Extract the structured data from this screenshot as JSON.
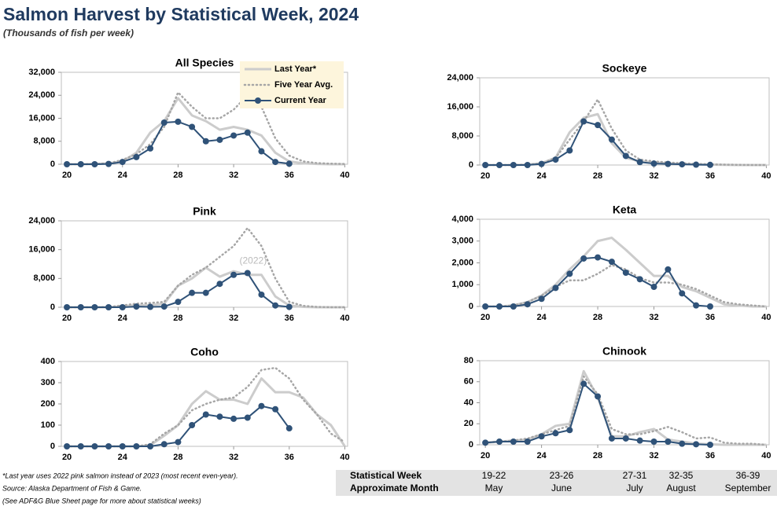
{
  "title": "Salmon Harvest by Statistical Week, 2024",
  "subtitle": "(Thousands of fish per week)",
  "chart_data": [
    {
      "type": "line",
      "title": "All Species",
      "legend": "top-right",
      "x": [
        20,
        21,
        22,
        23,
        24,
        25,
        26,
        27,
        28,
        29,
        30,
        31,
        32,
        33,
        34,
        35,
        36,
        37,
        38,
        39,
        40
      ],
      "xlim": [
        19.6,
        40.2
      ],
      "xticks": [
        20,
        24,
        28,
        32,
        36,
        40
      ],
      "ylim": [
        0,
        32000
      ],
      "yticks": [
        0,
        {
          "value": 8000,
          "label": "8,000"
        },
        {
          "value": 16000,
          "label": "16,000"
        },
        {
          "value": 24000,
          "label": "24,000"
        },
        {
          "value": 32000,
          "label": "32,000"
        }
      ],
      "series": [
        {
          "name": "Last Year*",
          "color": "#cccccc",
          "values": [
            0,
            0,
            100,
            300,
            1000,
            4000,
            11000,
            15000,
            23000,
            17000,
            15000,
            12000,
            13000,
            12000,
            10000,
            4000,
            1000,
            300,
            100,
            0,
            0
          ]
        },
        {
          "name": "Five Year Avg.",
          "color": "#a6a6a6",
          "values": [
            0,
            0,
            100,
            300,
            1500,
            3500,
            7000,
            13000,
            25000,
            20000,
            16000,
            16000,
            19000,
            24000,
            20000,
            9000,
            3000,
            1000,
            400,
            200,
            100
          ]
        },
        {
          "name": "Current Year",
          "color": "#2f5278",
          "values": [
            0,
            0,
            0,
            100,
            800,
            2500,
            5500,
            14500,
            14800,
            13000,
            8000,
            8500,
            10000,
            11000,
            4500,
            800,
            200,
            null,
            null,
            null,
            null
          ]
        }
      ]
    },
    {
      "type": "line",
      "title": "Sockeye",
      "x": [
        20,
        21,
        22,
        23,
        24,
        25,
        26,
        27,
        28,
        29,
        30,
        31,
        32,
        33,
        34,
        35,
        36,
        37,
        38,
        39,
        40
      ],
      "xlim": [
        19.6,
        40.2
      ],
      "xticks": [
        20,
        24,
        28,
        32,
        36,
        40
      ],
      "ylim": [
        0,
        24000
      ],
      "yticks": [
        0,
        {
          "value": 8000,
          "label": "8,000"
        },
        {
          "value": 16000,
          "label": "16,000"
        },
        {
          "value": 24000,
          "label": "24,000"
        }
      ],
      "series": [
        {
          "name": "Last Year*",
          "color": "#cccccc",
          "values": [
            0,
            0,
            0,
            100,
            500,
            2000,
            9000,
            13000,
            14000,
            6000,
            2000,
            1000,
            700,
            500,
            300,
            200,
            100,
            50,
            0,
            0,
            0
          ]
        },
        {
          "name": "Five Year Avg.",
          "color": "#a6a6a6",
          "values": [
            0,
            0,
            0,
            100,
            400,
            2000,
            7000,
            12000,
            18000,
            10000,
            4000,
            1500,
            1000,
            700,
            500,
            300,
            200,
            100,
            50,
            0,
            0
          ]
        },
        {
          "name": "Current Year",
          "color": "#2f5278",
          "values": [
            0,
            0,
            0,
            0,
            300,
            1500,
            4000,
            12000,
            11000,
            7000,
            2500,
            800,
            400,
            300,
            200,
            100,
            50,
            null,
            null,
            null,
            null
          ]
        }
      ]
    },
    {
      "type": "line",
      "title": "Pink",
      "x": [
        20,
        21,
        22,
        23,
        24,
        25,
        26,
        27,
        28,
        29,
        30,
        31,
        32,
        33,
        34,
        35,
        36,
        37,
        38,
        39,
        40
      ],
      "xlim": [
        19.6,
        40.2
      ],
      "xticks": [
        20,
        24,
        28,
        32,
        36,
        40
      ],
      "ylim": [
        0,
        24000
      ],
      "yticks": [
        0,
        {
          "value": 8000,
          "label": "8,000"
        },
        {
          "value": 16000,
          "label": "16,000"
        },
        {
          "value": 24000,
          "label": "24,000"
        }
      ],
      "annotations": [
        {
          "text": "(2022)",
          "x": 33.4,
          "y": 12800
        }
      ],
      "series": [
        {
          "name": "Last Year*",
          "color": "#cccccc",
          "values": [
            0,
            0,
            0,
            0,
            300,
            500,
            600,
            1000,
            6000,
            8000,
            11000,
            8500,
            10000,
            9000,
            9000,
            3000,
            500,
            100,
            0,
            0,
            0
          ]
        },
        {
          "name": "Five Year Avg.",
          "color": "#a6a6a6",
          "values": [
            0,
            0,
            0,
            100,
            500,
            1000,
            1200,
            1500,
            6000,
            9000,
            11000,
            14000,
            17000,
            22000,
            17000,
            8000,
            1500,
            400,
            100,
            0,
            0
          ]
        },
        {
          "name": "Current Year",
          "color": "#2f5278",
          "values": [
            0,
            0,
            0,
            0,
            0,
            200,
            100,
            200,
            1500,
            4000,
            4000,
            6500,
            9000,
            9500,
            3500,
            500,
            100,
            null,
            null,
            null,
            null
          ]
        }
      ]
    },
    {
      "type": "line",
      "title": "Keta",
      "x": [
        20,
        21,
        22,
        23,
        24,
        25,
        26,
        27,
        28,
        29,
        30,
        31,
        32,
        33,
        34,
        35,
        36,
        37,
        38,
        39,
        40
      ],
      "xlim": [
        19.6,
        40.2
      ],
      "xticks": [
        20,
        24,
        28,
        32,
        36,
        40
      ],
      "ylim": [
        0,
        4000
      ],
      "yticks": [
        0,
        {
          "value": 1000,
          "label": "1,000"
        },
        {
          "value": 2000,
          "label": "2,000"
        },
        {
          "value": 3000,
          "label": "3,000"
        },
        {
          "value": 4000,
          "label": "4,000"
        }
      ],
      "series": [
        {
          "name": "Last Year*",
          "color": "#cccccc",
          "values": [
            0,
            0,
            50,
            200,
            500,
            1000,
            1700,
            2300,
            3000,
            3150,
            2600,
            2000,
            1400,
            1400,
            900,
            700,
            400,
            100,
            50,
            0,
            0
          ]
        },
        {
          "name": "Five Year Avg.",
          "color": "#a6a6a6",
          "values": [
            0,
            0,
            50,
            200,
            500,
            900,
            1200,
            1200,
            1500,
            1900,
            1700,
            1300,
            1100,
            1100,
            1000,
            800,
            500,
            200,
            100,
            50,
            0
          ]
        },
        {
          "name": "Current Year",
          "color": "#2f5278",
          "values": [
            0,
            0,
            0,
            100,
            350,
            850,
            1500,
            2200,
            2250,
            2050,
            1550,
            1250,
            900,
            1700,
            600,
            50,
            0,
            null,
            null,
            null,
            null
          ]
        }
      ]
    },
    {
      "type": "line",
      "title": "Coho",
      "x": [
        20,
        21,
        22,
        23,
        24,
        25,
        26,
        27,
        28,
        29,
        30,
        31,
        32,
        33,
        34,
        35,
        36,
        37,
        38,
        39,
        40
      ],
      "xlim": [
        19.6,
        40.2
      ],
      "xticks": [
        20,
        24,
        28,
        32,
        36,
        40
      ],
      "ylim": [
        0,
        400
      ],
      "yticks": [
        0,
        100,
        200,
        300,
        400
      ],
      "series": [
        {
          "name": "Last Year*",
          "color": "#cccccc",
          "values": [
            0,
            0,
            0,
            0,
            0,
            0,
            5,
            50,
            100,
            200,
            260,
            220,
            220,
            200,
            320,
            255,
            255,
            230,
            150,
            100,
            0
          ]
        },
        {
          "name": "Five Year Avg.",
          "color": "#a6a6a6",
          "values": [
            0,
            0,
            0,
            0,
            0,
            0,
            10,
            60,
            100,
            170,
            200,
            220,
            230,
            280,
            360,
            370,
            320,
            220,
            150,
            60,
            20
          ]
        },
        {
          "name": "Current Year",
          "color": "#2f5278",
          "values": [
            0,
            0,
            0,
            0,
            0,
            0,
            0,
            10,
            20,
            100,
            150,
            140,
            130,
            135,
            190,
            175,
            85,
            null,
            null,
            null,
            null
          ]
        }
      ]
    },
    {
      "type": "line",
      "title": "Chinook",
      "x": [
        20,
        21,
        22,
        23,
        24,
        25,
        26,
        27,
        28,
        29,
        30,
        31,
        32,
        33,
        34,
        35,
        36,
        37,
        38,
        39,
        40
      ],
      "xlim": [
        19.6,
        40.2
      ],
      "xticks": [
        20,
        24,
        28,
        32,
        36,
        40
      ],
      "ylim": [
        0,
        80
      ],
      "yticks": [
        0,
        20,
        40,
        60,
        80
      ],
      "series": [
        {
          "name": "Last Year*",
          "color": "#cccccc",
          "values": [
            2,
            3,
            4,
            5,
            10,
            18,
            20,
            70,
            45,
            8,
            8,
            12,
            15,
            5,
            3,
            1,
            0.5,
            0,
            0,
            0,
            0
          ]
        },
        {
          "name": "Five Year Avg.",
          "color": "#a6a6a6",
          "values": [
            2,
            3,
            4,
            6,
            10,
            14,
            18,
            65,
            48,
            15,
            10,
            10,
            13,
            17,
            12,
            6,
            7,
            2,
            1,
            1,
            0
          ]
        },
        {
          "name": "Current Year",
          "color": "#2f5278",
          "values": [
            2,
            3,
            3,
            3,
            8,
            11,
            14,
            58,
            46,
            6,
            6,
            4,
            3,
            3,
            1,
            0.5,
            0,
            null,
            null,
            null,
            null
          ]
        }
      ]
    }
  ],
  "footnotes": [
    "*Last year uses 2022 pink salmon instead of 2023 (most recent even-year).",
    "Source: Alaska Department of Fish & Game.",
    "(See ADF&G Blue Sheet page for more about statistical weeks)"
  ],
  "table": {
    "rows": [
      [
        "Statistical Week",
        "19-22",
        "23-26",
        "27-31",
        "32-35",
        "36-39"
      ],
      [
        "Approximate Month",
        "May",
        "June",
        "July",
        "August",
        "September"
      ]
    ]
  }
}
